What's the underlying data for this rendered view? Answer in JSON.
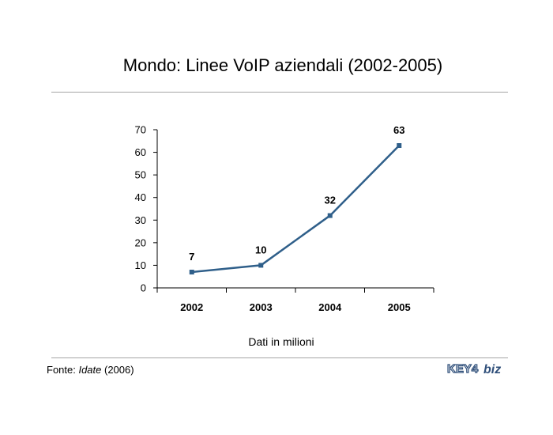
{
  "title": "Mondo: Linee VoIP aziendali (2002-2005)",
  "xlabel_note": "Dati in milioni",
  "source": {
    "prefix": "Fonte: ",
    "name": "Idate",
    "suffix": " (2006)"
  },
  "logo": {
    "left_text": "KEY4",
    "right_text": "biz"
  },
  "colors": {
    "line": "#2f5f8a",
    "axis": "#000000",
    "rule": "#a6a6a6"
  },
  "chart_data": {
    "type": "line",
    "title": "Mondo: Linee VoIP aziendali (2002-2005)",
    "xlabel": "Dati in milioni",
    "ylabel": "",
    "categories": [
      "2002",
      "2003",
      "2004",
      "2005"
    ],
    "series": [
      {
        "values": [
          7,
          10,
          32,
          63
        ]
      }
    ],
    "ylim": [
      0,
      70
    ],
    "yticks": [
      0,
      10,
      20,
      30,
      40,
      50,
      60,
      70
    ],
    "grid": false,
    "legend": "none",
    "data_labels": [
      "7",
      "10",
      "32",
      "63"
    ]
  }
}
